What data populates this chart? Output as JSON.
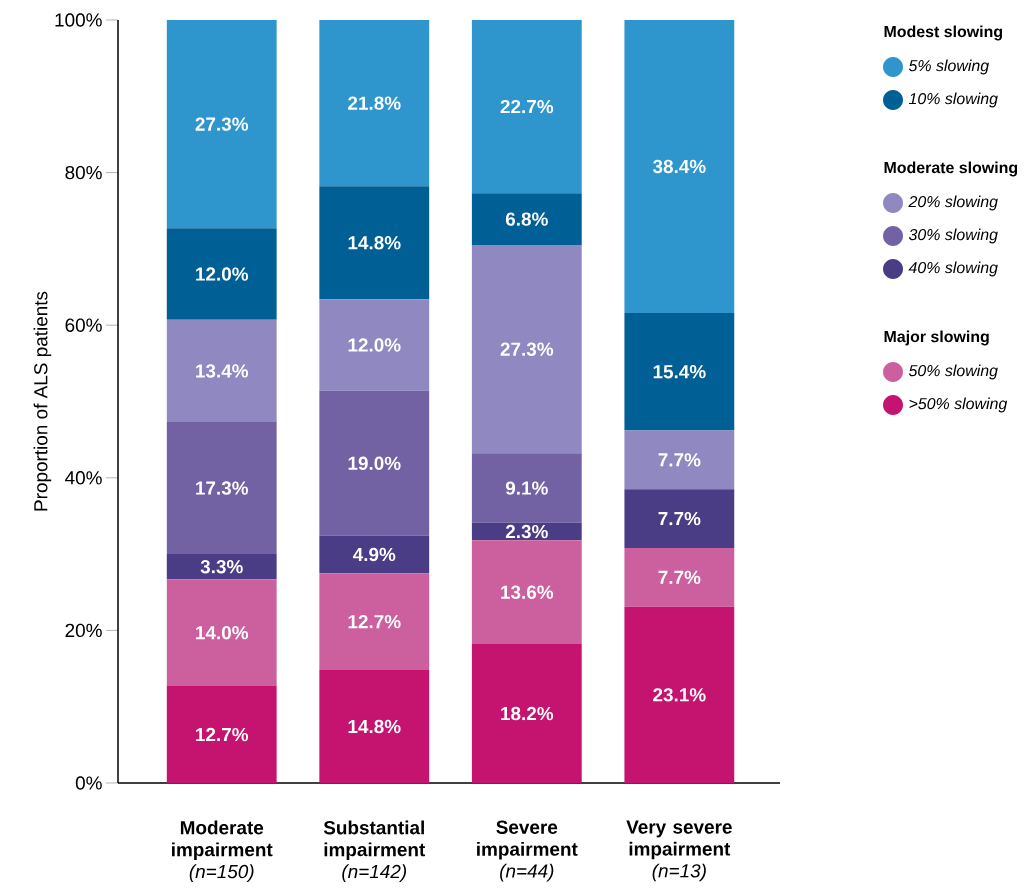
{
  "chart_data": {
    "type": "bar",
    "stacked": true,
    "ylabel": "Proportion of ALS patients",
    "categories": [
      "**Moderate impairment** *(n=150)*",
      "**Substantial impairment** *(n=142)*",
      "**Severe impairment** *(n=44)*",
      "**Very severe impairment** *(n=13)*"
    ],
    "ylim": [
      0,
      100
    ],
    "yticks": [
      {
        "value": 0,
        "label": "0%"
      },
      {
        "value": 20,
        "label": "20%"
      },
      {
        "value": 40,
        "label": "40%"
      },
      {
        "value": 60,
        "label": "60%"
      },
      {
        "value": 80,
        "label": "80%"
      },
      {
        "value": 100,
        "label": "100%"
      }
    ],
    "grid": false,
    "legend": "right",
    "annotations": [
      "Modest slowing",
      "Moderate slowing",
      "Major slowing"
    ],
    "series": [
      {
        "name": ">50% slowing",
        "color": "#c4146f",
        "values": [
          12.7,
          14.8,
          18.2,
          23.1
        ],
        "value_labels": [
          "12.7%",
          "14.8%",
          "18.2%",
          "23.1%"
        ]
      },
      {
        "name": "50% slowing",
        "color": "#cc609e",
        "values": [
          14.0,
          12.7,
          13.6,
          7.7
        ],
        "value_labels": [
          "14.0%",
          "12.7%",
          "13.6%",
          "7.7%"
        ]
      },
      {
        "name": "40% slowing",
        "color": "#4a3d85",
        "values": [
          3.3,
          4.9,
          2.3,
          7.7
        ],
        "value_labels": [
          "3.3%",
          "4.9%",
          "2.3%",
          "7.7%"
        ]
      },
      {
        "name": "30% slowing",
        "color": "#7262a4",
        "values": [
          17.3,
          19.0,
          9.1,
          null
        ],
        "value_labels": [
          "17.3%",
          "19.0%",
          "9.1%",
          null
        ]
      },
      {
        "name": "20% slowing",
        "color": "#9088c0",
        "values": [
          13.4,
          12.0,
          27.3,
          7.7
        ],
        "value_labels": [
          "13.4%",
          "12.0%",
          "27.3%",
          "7.7%"
        ]
      },
      {
        "name": "10% slowing",
        "color": "#005f94",
        "values": [
          12.0,
          14.8,
          6.8,
          15.4
        ],
        "value_labels": [
          "12.0%",
          "14.8%",
          "6.8%",
          "15.4%"
        ]
      },
      {
        "name": "5% slowing",
        "color": "#2e96cc",
        "values": [
          27.3,
          21.8,
          22.7,
          38.4
        ],
        "value_labels": [
          "27.3%",
          "21.8%",
          "22.7%",
          "38.4%"
        ]
      }
    ]
  }
}
